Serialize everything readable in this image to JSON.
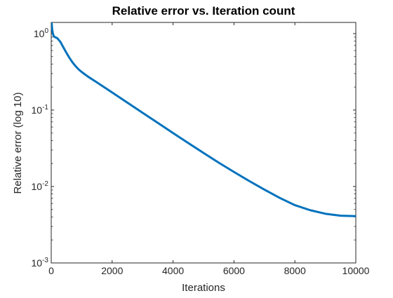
{
  "chart_data": {
    "type": "line",
    "title": "Relative error vs. Iteration count",
    "xlabel": "Iterations",
    "ylabel": "Relative error (log 10)",
    "xlim": [
      0,
      10000
    ],
    "ylim": [
      0.001,
      1.4
    ],
    "yscale": "log",
    "grid": false,
    "line_color": "#0072BD",
    "x_ticks": [
      0,
      2000,
      4000,
      6000,
      8000,
      10000
    ],
    "x_tick_labels": [
      "0",
      "2000",
      "4000",
      "6000",
      "8000",
      "10000"
    ],
    "y_ticks": [
      {
        "value": 1,
        "base": "10",
        "exp": "0"
      },
      {
        "value": 0.1,
        "base": "10",
        "exp": "-1"
      },
      {
        "value": 0.01,
        "base": "10",
        "exp": "-2"
      },
      {
        "value": 0.001,
        "base": "10",
        "exp": "-3"
      }
    ],
    "series": [
      {
        "x": [
          0,
          15,
          30,
          50,
          80,
          120,
          200,
          300,
          400,
          500,
          600,
          700,
          800,
          900,
          1000,
          1200,
          1500,
          2000,
          2500,
          3000,
          3500,
          4000,
          4500,
          5000,
          5500,
          6000,
          6500,
          7000,
          7500,
          8000,
          8500,
          9000,
          9500,
          10000
        ],
        "values": [
          1.4,
          1.35,
          1.15,
          1.02,
          0.93,
          0.9,
          0.87,
          0.78,
          0.66,
          0.56,
          0.48,
          0.42,
          0.375,
          0.34,
          0.315,
          0.275,
          0.23,
          0.17,
          0.125,
          0.092,
          0.068,
          0.05,
          0.037,
          0.0275,
          0.0205,
          0.0155,
          0.0118,
          0.0091,
          0.0071,
          0.0057,
          0.0049,
          0.0044,
          0.00415,
          0.0041
        ]
      }
    ]
  }
}
